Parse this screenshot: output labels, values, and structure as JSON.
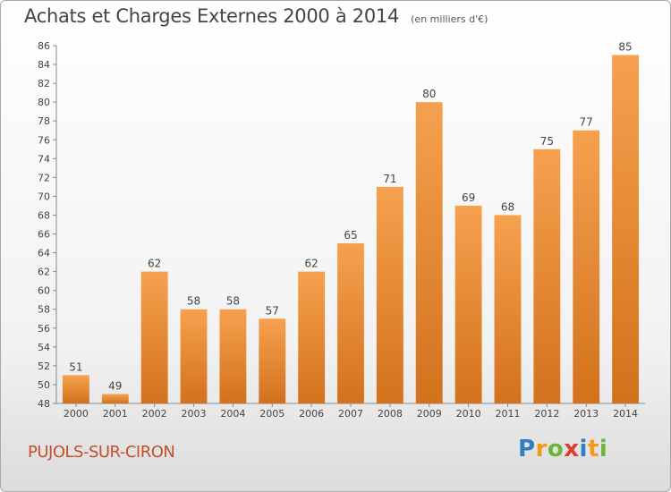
{
  "header": {
    "title": "Achats et Charges Externes 2000 à 2014",
    "unit": "(en milliers d'€)"
  },
  "footer": {
    "city": "PUJOLS-SUR-CIRON",
    "brand_letters": [
      "P",
      "r",
      "o",
      "x",
      "i",
      "t",
      "i"
    ],
    "brand_colors": [
      "#2f7fc2",
      "#f29a1a",
      "#6fb33a",
      "#e23a2c",
      "#2f7fc2",
      "#f29a1a",
      "#6fb33a"
    ]
  },
  "chart_data": {
    "type": "bar",
    "title": "Achats et Charges Externes 2000 à 2014",
    "subtitle": "(en milliers d'€)",
    "xlabel": "",
    "ylabel": "",
    "categories": [
      "2000",
      "2001",
      "2002",
      "2003",
      "2004",
      "2005",
      "2006",
      "2007",
      "2008",
      "2009",
      "2010",
      "2011",
      "2012",
      "2013",
      "2014"
    ],
    "values": [
      51,
      49,
      62,
      58,
      58,
      57,
      62,
      65,
      71,
      80,
      69,
      68,
      75,
      77,
      85
    ],
    "data_labels": [
      "51",
      "49",
      "62",
      "58",
      "58",
      "57",
      "62",
      "65",
      "71",
      "80",
      "69",
      "68",
      "75",
      "77",
      "85"
    ],
    "ylim": [
      48,
      86
    ],
    "yticks": [
      48,
      50,
      52,
      54,
      56,
      58,
      60,
      62,
      64,
      66,
      68,
      70,
      72,
      74,
      76,
      78,
      80,
      82,
      84,
      86
    ],
    "grid": false,
    "legend": "none",
    "bar_color_top": "#f6a14f",
    "bar_color_bottom": "#d3711c"
  }
}
